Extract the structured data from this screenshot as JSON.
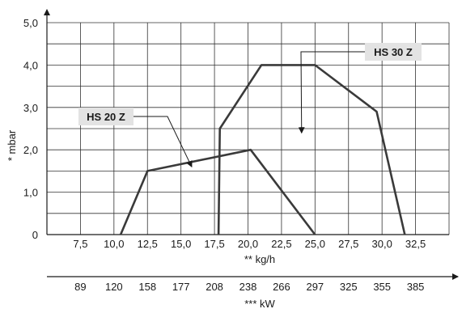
{
  "chart_data": {
    "type": "line",
    "xlabel": "** kg/h",
    "x2label": "*** kW",
    "ylabel": "* mbar",
    "xlim": [
      5.0,
      35.0
    ],
    "ylim": [
      0,
      5.0
    ],
    "grid": true,
    "x_ticks": [
      "7,5",
      "10,0",
      "12,5",
      "15,0",
      "17,5",
      "20,0",
      "22,5",
      "25,0",
      "27,5",
      "30,0",
      "32,5"
    ],
    "x_tick_values": [
      7.5,
      10.0,
      12.5,
      15.0,
      17.5,
      20.0,
      22.5,
      25.0,
      27.5,
      30.0,
      32.5
    ],
    "x2_ticks": [
      "89",
      "120",
      "158",
      "177",
      "208",
      "238",
      "266",
      "297",
      "325",
      "355",
      "385"
    ],
    "y_ticks": [
      "0",
      "1,0",
      "2,0",
      "3,0",
      "4,0",
      "5,0"
    ],
    "y_tick_values": [
      0,
      1,
      2,
      3,
      4,
      5
    ],
    "series": [
      {
        "name": "HS 20 Z",
        "points": [
          [
            10.5,
            0
          ],
          [
            12.5,
            1.5
          ],
          [
            20.2,
            2.0
          ],
          [
            25.0,
            0
          ]
        ]
      },
      {
        "name": "HS 30 Z",
        "points": [
          [
            17.8,
            0
          ],
          [
            17.9,
            2.5
          ],
          [
            21.0,
            4.0
          ],
          [
            25.0,
            4.0
          ],
          [
            29.6,
            2.9
          ],
          [
            31.7,
            0
          ]
        ]
      }
    ],
    "callouts": [
      {
        "label": "HS 20 Z",
        "arrow_to": [
          15.8,
          1.6
        ]
      },
      {
        "label": "HS 30 Z",
        "arrow_to": [
          24.0,
          2.4
        ]
      }
    ]
  }
}
